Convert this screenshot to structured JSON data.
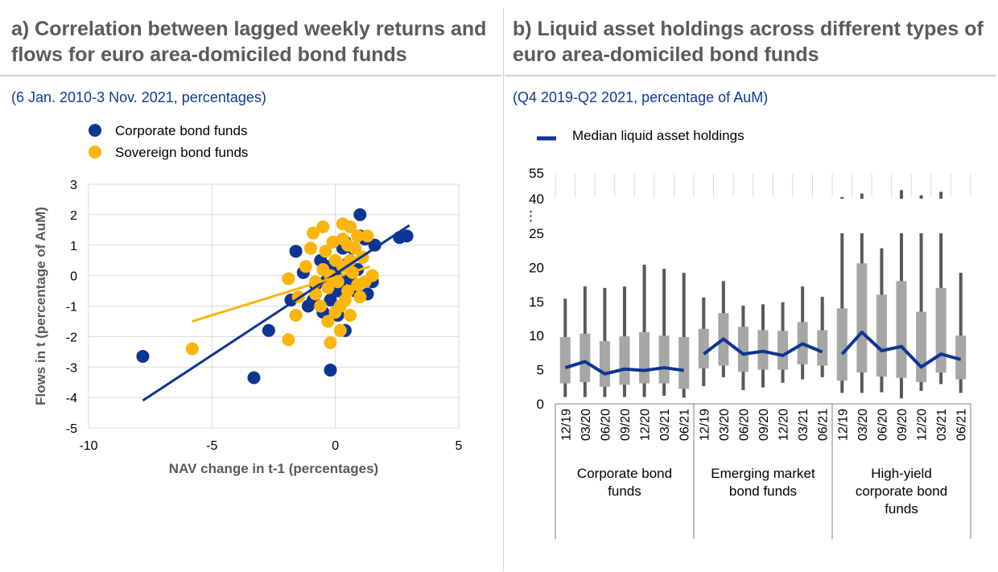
{
  "panel_a": {
    "title": "a) Correlation between lagged weekly returns and flows for euro area-domiciled bond funds",
    "subtitle": "(6 Jan. 2010-3 Nov. 2021, percentages)"
  },
  "panel_b": {
    "title": "b) Liquid asset holdings across different types of euro area-domiciled bond funds",
    "subtitle": "(Q4 2019-Q2 2021, percentage of AuM)"
  },
  "chart_data": [
    {
      "type": "scatter",
      "xlabel": "NAV change in t-1 (percentages)",
      "ylabel": "Flows in t (percentage of AuM)",
      "xlim": [
        -10,
        5
      ],
      "ylim": [
        -5,
        3
      ],
      "xticks": [
        "-10",
        "-5",
        "0",
        "5"
      ],
      "yticks": [
        "-5",
        "-4",
        "-3",
        "-2",
        "-1",
        "0",
        "1",
        "2",
        "3"
      ],
      "grid": true,
      "legend_position": "top-left",
      "series": [
        {
          "name": "Corporate bond funds",
          "color": "#0d3595",
          "points": [
            [
              -7.8,
              -2.65
            ],
            [
              -3.3,
              -3.35
            ],
            [
              -2.7,
              -1.8
            ],
            [
              -0.2,
              -3.1
            ],
            [
              1.0,
              2.0
            ],
            [
              2.6,
              1.25
            ],
            [
              2.9,
              1.3
            ],
            [
              1.6,
              1.0
            ],
            [
              1.5,
              -0.2
            ],
            [
              0.4,
              -1.8
            ],
            [
              -1.6,
              0.8
            ],
            [
              -1.1,
              -1.0
            ],
            [
              -0.5,
              -1.2
            ],
            [
              -0.3,
              0.3
            ],
            [
              0.0,
              0.1
            ],
            [
              0.2,
              -0.2
            ],
            [
              0.5,
              0.4
            ],
            [
              0.8,
              -0.5
            ],
            [
              1.1,
              0.6
            ],
            [
              1.2,
              1.2
            ],
            [
              -0.8,
              -0.3
            ],
            [
              -0.2,
              -0.8
            ],
            [
              0.3,
              0.9
            ],
            [
              0.6,
              -0.1
            ],
            [
              0.9,
              0.2
            ],
            [
              -1.3,
              0.1
            ],
            [
              -0.6,
              0.5
            ],
            [
              0.1,
              -0.5
            ],
            [
              -0.4,
              -0.2
            ],
            [
              1.3,
              -0.6
            ],
            [
              0.7,
              0.9
            ],
            [
              -1.8,
              -0.8
            ],
            [
              0.1,
              -1.3
            ],
            [
              -0.9,
              -0.8
            ],
            [
              0.4,
              1.1
            ],
            [
              1.0,
              1.3
            ]
          ],
          "trendline": [
            [
              -7.8,
              -4.1
            ],
            [
              3.0,
              1.65
            ]
          ]
        },
        {
          "name": "Sovereign bond funds",
          "color": "#fbb50c",
          "points": [
            [
              -5.8,
              -2.4
            ],
            [
              -1.9,
              -2.1
            ],
            [
              -1.6,
              -1.3
            ],
            [
              -0.2,
              -2.2
            ],
            [
              0.2,
              -1.8
            ],
            [
              0.6,
              -1.3
            ],
            [
              1.3,
              1.3
            ],
            [
              0.6,
              1.6
            ],
            [
              0.3,
              1.7
            ],
            [
              -0.5,
              1.6
            ],
            [
              -0.9,
              1.4
            ],
            [
              -1.9,
              -0.1
            ],
            [
              -1.2,
              0.3
            ],
            [
              -0.8,
              -0.6
            ],
            [
              -0.5,
              0.2
            ],
            [
              -0.3,
              -0.4
            ],
            [
              0.0,
              0.5
            ],
            [
              0.1,
              -0.2
            ],
            [
              0.3,
              0.3
            ],
            [
              0.5,
              -0.5
            ],
            [
              0.7,
              0.1
            ],
            [
              0.9,
              -0.3
            ],
            [
              1.1,
              0.6
            ],
            [
              1.5,
              0.0
            ],
            [
              -0.6,
              -1.0
            ],
            [
              -0.3,
              -1.5
            ],
            [
              0.2,
              -1.0
            ],
            [
              0.5,
              1.0
            ],
            [
              0.8,
              0.9
            ],
            [
              -1.0,
              0.9
            ],
            [
              -0.1,
              1.1
            ],
            [
              0.4,
              -0.8
            ],
            [
              -0.8,
              -0.2
            ],
            [
              0.0,
              -1.2
            ],
            [
              1.0,
              -0.7
            ],
            [
              0.3,
              1.2
            ],
            [
              -0.4,
              0.8
            ],
            [
              0.6,
              0.5
            ],
            [
              -1.5,
              -0.7
            ],
            [
              1.2,
              -0.2
            ],
            [
              0.9,
              1.3
            ],
            [
              -0.2,
              0.0
            ]
          ],
          "trendline": [
            [
              -5.8,
              -1.5
            ],
            [
              1.4,
              0.3
            ]
          ]
        }
      ]
    },
    {
      "type": "bar",
      "description_of_marks": "floating bars (interquartile range), whiskers (range), line = median",
      "yticks_lower": [
        "0",
        "5",
        "10",
        "15",
        "20",
        "25"
      ],
      "yticks_upper": [
        "40",
        "55"
      ],
      "axis_break_symbol": "⋮",
      "ylim_lower": [
        0,
        25
      ],
      "ylim_upper": [
        40,
        55
      ],
      "legend": "Median liquid asset holdings",
      "legend_position": "top-left",
      "colors": {
        "box": "#a6a6a6",
        "whisker": "#595959",
        "median": "#0d3595"
      },
      "groups": [
        {
          "label_lines": [
            "Corporate bond",
            "funds"
          ],
          "categories": [
            "12/19",
            "03/20",
            "06/20",
            "09/20",
            "12/20",
            "03/21",
            "06/21"
          ],
          "q1": [
            3.0,
            3.2,
            2.5,
            2.8,
            3.0,
            3.0,
            2.2
          ],
          "q3": [
            9.8,
            10.3,
            9.2,
            9.9,
            10.5,
            10.0,
            9.8
          ],
          "min": [
            1.0,
            1.0,
            1.0,
            1.0,
            1.0,
            1.2,
            0.9
          ],
          "max": [
            15.4,
            17.2,
            17.0,
            17.2,
            20.4,
            19.8,
            19.2
          ],
          "median": [
            5.3,
            6.2,
            4.4,
            5.1,
            4.9,
            5.3,
            4.9
          ]
        },
        {
          "label_lines": [
            "Emerging market",
            "bond funds"
          ],
          "categories": [
            "12/19",
            "03/20",
            "06/20",
            "09/20",
            "12/20",
            "03/21",
            "06/21"
          ],
          "q1": [
            5.2,
            5.6,
            4.7,
            5.0,
            5.0,
            5.8,
            5.6
          ],
          "q3": [
            11.0,
            13.3,
            11.3,
            10.8,
            10.7,
            12.0,
            10.8
          ],
          "min": [
            2.6,
            3.9,
            2.0,
            2.4,
            3.1,
            3.6,
            3.9
          ],
          "max": [
            15.6,
            18.0,
            14.4,
            14.6,
            14.9,
            17.2,
            15.7
          ],
          "median": [
            7.3,
            9.5,
            7.3,
            7.7,
            7.1,
            8.8,
            7.6
          ]
        },
        {
          "label_lines": [
            "High-yield",
            "corporate bond",
            "funds"
          ],
          "categories": [
            "12/19",
            "03/20",
            "06/20",
            "09/20",
            "12/20",
            "03/21",
            "06/21"
          ],
          "q1": [
            3.4,
            4.6,
            4.0,
            3.8,
            3.2,
            4.6,
            3.6
          ],
          "q3": [
            14.0,
            20.6,
            16.0,
            18.0,
            13.5,
            17.0,
            10.0
          ],
          "min": [
            1.6,
            1.6,
            1.7,
            0.8,
            1.9,
            2.9,
            1.6
          ],
          "max": [
            41,
            43,
            22.8,
            45,
            42,
            44,
            19.2
          ],
          "median": [
            7.3,
            10.5,
            7.8,
            8.4,
            5.4,
            7.3,
            6.5
          ]
        }
      ]
    }
  ]
}
